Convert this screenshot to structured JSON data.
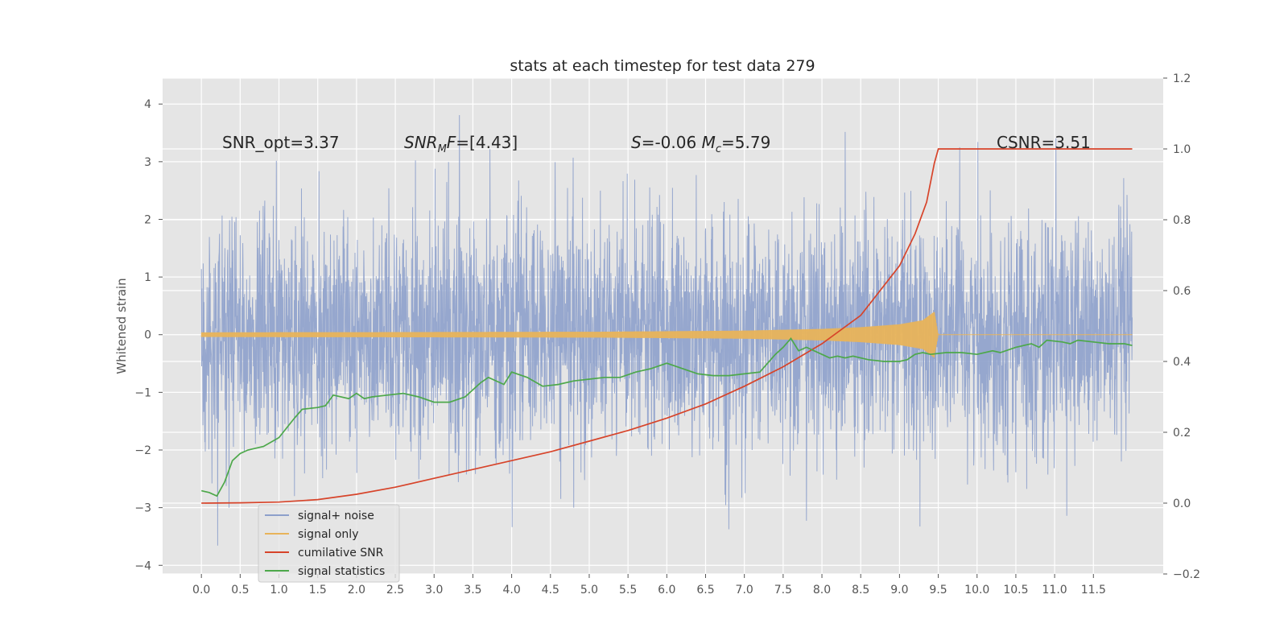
{
  "chart_data": {
    "type": "line",
    "title": "stats at each timestep for test data 279",
    "ylabel": "Whitened strain",
    "xlabel": "",
    "xlim": [
      -0.5,
      12.4
    ],
    "ylim": [
      -4.15,
      4.45
    ],
    "y2lim": [
      -0.2,
      1.2
    ],
    "x_ticks": [
      "0.0",
      "0.5",
      "1.0",
      "1.5",
      "2.0",
      "2.5",
      "3.0",
      "3.5",
      "4.0",
      "4.5",
      "5.0",
      "5.5",
      "6.0",
      "6.5",
      "7.0",
      "7.5",
      "8.0",
      "8.5",
      "9.0",
      "9.5",
      "10.0",
      "10.5",
      "11.0",
      "11.5"
    ],
    "y_ticks": [
      "4",
      "3",
      "2",
      "1",
      "0",
      "−1",
      "−2",
      "−3",
      "−4"
    ],
    "y2_ticks": [
      "1.2",
      "1.0",
      "0.8",
      "0.6",
      "0.4",
      "0.2",
      "0.0",
      "−0.2"
    ],
    "annotations": [
      {
        "text": "SNR_opt=3.37",
        "x": 0.2,
        "y": 3.3
      },
      {
        "text": "SNR_MF=[4.43]",
        "x": 2.6,
        "y": 3.3
      },
      {
        "text": "S=-0.06  M_c=5.79",
        "x": 5.6,
        "y": 3.3
      },
      {
        "text": "CSNR=3.51",
        "x": 10.4,
        "y": 3.3
      }
    ],
    "legend": {
      "placement": "lower-left",
      "entries": [
        "signal+ noise",
        "signal only",
        "cumilative SNR",
        "signal statistics"
      ]
    },
    "grid": true,
    "series": [
      {
        "name": "signal+ noise",
        "axis": "left",
        "color": "#8da0cb",
        "kind": "noise",
        "x_range": [
          0,
          12
        ],
        "spread": 1.0
      },
      {
        "name": "signal only",
        "axis": "left",
        "color": "#e8b35a",
        "kind": "chirp",
        "x_range": [
          0,
          9.5
        ],
        "envelope": {
          "x": [
            0,
            5.0,
            7.0,
            8.0,
            8.5,
            9.0,
            9.3,
            9.45,
            9.5
          ],
          "y": [
            0.04,
            0.05,
            0.07,
            0.1,
            0.13,
            0.18,
            0.25,
            0.4,
            0.0
          ]
        }
      },
      {
        "name": "cumilative SNR",
        "axis": "right",
        "color": "#d7442a",
        "kind": "line",
        "x": [
          0,
          0.5,
          1.0,
          1.5,
          2.0,
          2.5,
          3.0,
          3.5,
          4.0,
          4.5,
          5.0,
          5.5,
          6.0,
          6.5,
          7.0,
          7.5,
          8.0,
          8.5,
          9.0,
          9.2,
          9.35,
          9.45,
          9.5,
          10.0,
          11.0,
          12.0
        ],
        "y": [
          0.0,
          0.001,
          0.003,
          0.01,
          0.025,
          0.045,
          0.07,
          0.095,
          0.12,
          0.145,
          0.175,
          0.205,
          0.24,
          0.28,
          0.33,
          0.385,
          0.45,
          0.53,
          0.67,
          0.76,
          0.85,
          0.96,
          1.0,
          1.0,
          1.0,
          1.0
        ]
      },
      {
        "name": "signal statistics",
        "axis": "right",
        "color": "#4da84a",
        "kind": "line",
        "x": [
          0,
          0.1,
          0.2,
          0.3,
          0.4,
          0.5,
          0.6,
          0.7,
          0.8,
          1.0,
          1.2,
          1.3,
          1.5,
          1.6,
          1.7,
          1.9,
          2.0,
          2.1,
          2.2,
          2.4,
          2.6,
          2.8,
          3.0,
          3.2,
          3.4,
          3.5,
          3.6,
          3.7,
          3.9,
          4.0,
          4.2,
          4.4,
          4.6,
          4.8,
          5.0,
          5.2,
          5.4,
          5.6,
          5.8,
          6.0,
          6.2,
          6.4,
          6.6,
          6.8,
          7.0,
          7.2,
          7.4,
          7.5,
          7.6,
          7.7,
          7.8,
          7.9,
          8.0,
          8.1,
          8.2,
          8.3,
          8.4,
          8.6,
          8.8,
          9.0,
          9.1,
          9.2,
          9.3,
          9.4,
          9.6,
          9.8,
          10.0,
          10.2,
          10.3,
          10.5,
          10.7,
          10.8,
          10.9,
          11.1,
          11.2,
          11.3,
          11.5,
          11.7,
          11.9,
          12.0
        ],
        "y": [
          0.035,
          0.03,
          0.02,
          0.06,
          0.12,
          0.14,
          0.15,
          0.155,
          0.16,
          0.185,
          0.24,
          0.265,
          0.27,
          0.275,
          0.305,
          0.295,
          0.31,
          0.295,
          0.3,
          0.305,
          0.31,
          0.3,
          0.285,
          0.285,
          0.3,
          0.32,
          0.34,
          0.355,
          0.335,
          0.37,
          0.355,
          0.33,
          0.335,
          0.345,
          0.35,
          0.355,
          0.355,
          0.37,
          0.38,
          0.395,
          0.38,
          0.365,
          0.36,
          0.36,
          0.365,
          0.37,
          0.42,
          0.44,
          0.465,
          0.43,
          0.44,
          0.43,
          0.42,
          0.41,
          0.415,
          0.41,
          0.415,
          0.405,
          0.4,
          0.4,
          0.405,
          0.42,
          0.425,
          0.42,
          0.425,
          0.425,
          0.42,
          0.43,
          0.425,
          0.44,
          0.45,
          0.44,
          0.46,
          0.455,
          0.45,
          0.46,
          0.455,
          0.45,
          0.45,
          0.445
        ]
      }
    ]
  }
}
